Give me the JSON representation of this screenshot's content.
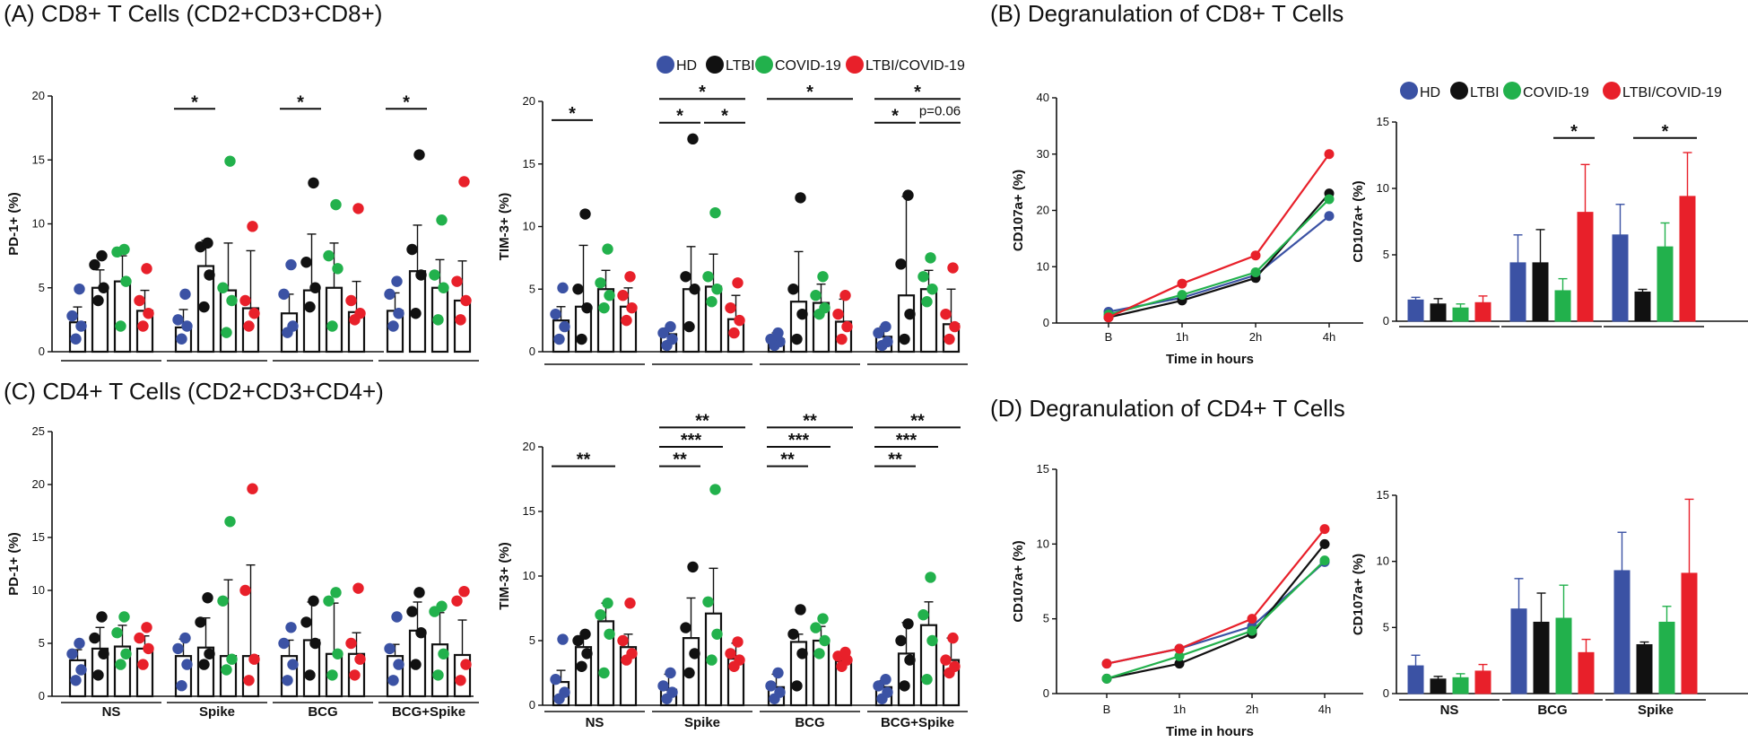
{
  "legend": {
    "labels": [
      "HD",
      "LTBI",
      "COVID-19",
      "LTBI/COVID-19"
    ],
    "colors": [
      "#3b52a4",
      "#111111",
      "#22b14c",
      "#e8202a"
    ]
  },
  "panels": {
    "A": {
      "title": "(A) CD8+ T Cells (CD2+CD3+CD8+)"
    },
    "B": {
      "title": "(B) Degranulation of CD8+ T Cells"
    },
    "C": {
      "title": "(C) CD4+ T Cells (CD2+CD3+CD4+)"
    },
    "D": {
      "title": "(D) Degranulation of CD4+ T Cells"
    }
  },
  "chart_data": [
    {
      "id": "A_pd1",
      "type": "bar",
      "panel": "A",
      "ylabel": "PD-1+ (%)",
      "ylim": [
        0,
        20
      ],
      "yticks": [
        0,
        5,
        10,
        15,
        20
      ],
      "groups": [
        "NS",
        "Spike",
        "BCG",
        "BCG+Spike"
      ],
      "show_group_labels": false,
      "series": [
        {
          "name": "HD",
          "values": [
            2.3,
            1.9,
            3.0,
            3.2
          ],
          "err": [
            1.2,
            1.4,
            1.5,
            1.4
          ]
        },
        {
          "name": "LTBI",
          "values": [
            5.0,
            6.7,
            4.8,
            6.3
          ],
          "err": [
            1.4,
            2.0,
            4.4,
            3.6
          ]
        },
        {
          "name": "COVID-19",
          "values": [
            5.5,
            4.8,
            5.0,
            5.0
          ],
          "err": [
            2.0,
            3.7,
            3.5,
            2.2
          ]
        },
        {
          "name": "LTBI/COVID-19",
          "values": [
            3.2,
            3.4,
            3.1,
            4.0
          ],
          "err": [
            1.6,
            4.5,
            2.4,
            3.1
          ]
        }
      ],
      "points": [
        [
          [
            1.0,
            2.0,
            2.8,
            4.9
          ],
          [
            4.0,
            5.0,
            6.8,
            7.5
          ],
          [
            2.0,
            5.5,
            7.8,
            8.0
          ],
          [
            2.0,
            3.0,
            4.0,
            6.5
          ]
        ],
        [
          [
            1.0,
            2.0,
            2.5,
            4.5
          ],
          [
            3.5,
            6.0,
            8.2,
            8.5
          ],
          [
            1.5,
            4.0,
            5.0,
            14.9
          ],
          [
            2.0,
            3.0,
            4.0,
            9.8
          ]
        ],
        [
          [
            1.5,
            2.0,
            4.5,
            6.8
          ],
          [
            3.5,
            5.0,
            7.0,
            13.2
          ],
          [
            2.0,
            6.5,
            7.5,
            11.5
          ],
          [
            2.5,
            3.0,
            4.0,
            11.2
          ]
        ],
        [
          [
            2.0,
            3.0,
            4.5,
            5.5
          ],
          [
            3.0,
            6.0,
            8.0,
            15.4
          ],
          [
            2.5,
            5.0,
            6.0,
            10.3
          ],
          [
            2.5,
            4.0,
            5.5,
            13.3
          ]
        ]
      ],
      "significance": [
        {
          "group": 1,
          "from": 0,
          "to": 1,
          "y": 19.0,
          "label": "*"
        },
        {
          "group": 2,
          "from": 0,
          "to": 1,
          "y": 19.0,
          "label": "*"
        },
        {
          "group": 3,
          "from": 0,
          "to": 1,
          "y": 19.0,
          "label": "*"
        }
      ]
    },
    {
      "id": "A_tim3",
      "type": "bar",
      "panel": "A",
      "ylabel": "TIM-3+ (%)",
      "ylim": [
        0,
        20
      ],
      "yticks": [
        0,
        5,
        10,
        15,
        20
      ],
      "groups": [
        "NS",
        "Spike",
        "BCG",
        "BCG+Spike"
      ],
      "show_group_labels": false,
      "series": [
        {
          "name": "HD",
          "values": [
            2.5,
            1.4,
            1.0,
            1.2
          ],
          "err": [
            1.1,
            0.5,
            0.5,
            0.8
          ]
        },
        {
          "name": "LTBI",
          "values": [
            3.6,
            5.0,
            4.0,
            4.5
          ],
          "err": [
            4.9,
            3.4,
            4.0,
            7.9
          ]
        },
        {
          "name": "COVID-19",
          "values": [
            5.0,
            5.2,
            3.9,
            5.0
          ],
          "err": [
            1.5,
            2.6,
            1.5,
            1.5
          ]
        },
        {
          "name": "LTBI/COVID-19",
          "values": [
            3.6,
            2.6,
            2.4,
            2.2
          ],
          "err": [
            1.5,
            1.9,
            1.8,
            2.8
          ]
        }
      ],
      "points": [
        [
          [
            1.0,
            2.0,
            3.0,
            5.1
          ],
          [
            1.0,
            3.5,
            5.0,
            11.0
          ],
          [
            3.5,
            4.5,
            5.5,
            8.2
          ],
          [
            2.5,
            3.5,
            4.5,
            6.0
          ]
        ],
        [
          [
            0.5,
            1.0,
            1.5,
            2.0
          ],
          [
            2.0,
            5.0,
            6.0,
            17.0
          ],
          [
            4.0,
            5.0,
            6.0,
            11.1
          ],
          [
            1.5,
            2.5,
            3.5,
            5.5
          ]
        ],
        [
          [
            0.5,
            0.8,
            1.0,
            1.5
          ],
          [
            1.0,
            3.0,
            5.0,
            12.3
          ],
          [
            3.0,
            3.5,
            4.5,
            6.0
          ],
          [
            1.0,
            2.0,
            3.0,
            4.5
          ]
        ],
        [
          [
            0.5,
            0.8,
            1.5,
            2.0
          ],
          [
            1.0,
            3.0,
            7.0,
            12.5
          ],
          [
            4.0,
            5.0,
            6.0,
            7.5
          ],
          [
            1.0,
            2.0,
            3.0,
            6.7
          ]
        ]
      ],
      "significance": [
        {
          "group": 0,
          "from": 0,
          "to": 1,
          "y": 18.5,
          "label": "*"
        },
        {
          "group": 1,
          "from": 0,
          "to": 3,
          "y": 20.2,
          "label": "*"
        },
        {
          "group": 1,
          "from": 0,
          "to": 1,
          "y": 18.3,
          "label": "*"
        },
        {
          "group": 1,
          "from": 2,
          "to": 3,
          "y": 18.3,
          "label": "*"
        },
        {
          "group": 2,
          "from": 0,
          "to": 3,
          "y": 20.2,
          "label": "*"
        },
        {
          "group": 3,
          "from": 0,
          "to": 3,
          "y": 20.2,
          "label": "*"
        },
        {
          "group": 3,
          "from": 0,
          "to": 1,
          "y": 18.3,
          "label": "*"
        },
        {
          "group": 3,
          "from": 2,
          "to": 3,
          "y": 18.3,
          "label": "p=0.06"
        }
      ]
    },
    {
      "id": "C_pd1",
      "type": "bar",
      "panel": "C",
      "ylabel": "PD-1+ (%)",
      "ylim": [
        0,
        25
      ],
      "yticks": [
        0,
        5,
        10,
        15,
        20,
        25
      ],
      "groups": [
        "NS",
        "Spike",
        "BCG",
        "BCG+Spike"
      ],
      "show_group_labels": true,
      "series": [
        {
          "name": "HD",
          "values": [
            3.4,
            3.8,
            3.8,
            3.8
          ],
          "err": [
            1.0,
            1.6,
            1.5,
            1.1
          ]
        },
        {
          "name": "LTBI",
          "values": [
            4.5,
            4.6,
            5.3,
            6.2
          ],
          "err": [
            2.0,
            2.8,
            3.6,
            2.7
          ]
        },
        {
          "name": "COVID-19",
          "values": [
            4.7,
            3.8,
            4.0,
            4.9
          ],
          "err": [
            2.0,
            7.2,
            4.8,
            3.0
          ]
        },
        {
          "name": "LTBI/COVID-19",
          "values": [
            4.5,
            3.8,
            4.0,
            3.9
          ],
          "err": [
            1.2,
            8.6,
            2.0,
            3.3
          ]
        }
      ],
      "points": [
        [
          [
            1.5,
            2.5,
            4.0,
            5.0
          ],
          [
            2.0,
            4.0,
            5.5,
            7.5
          ],
          [
            3.0,
            4.0,
            6.0,
            7.5
          ],
          [
            3.0,
            4.5,
            5.5,
            6.5
          ]
        ],
        [
          [
            1.0,
            3.0,
            4.5,
            5.5
          ],
          [
            3.0,
            4.0,
            7.0,
            9.3
          ],
          [
            2.5,
            3.5,
            9.0,
            16.5
          ],
          [
            1.5,
            3.5,
            10.0,
            19.6
          ]
        ],
        [
          [
            1.5,
            3.0,
            5.0,
            6.5
          ],
          [
            2.0,
            5.0,
            7.0,
            9.0
          ],
          [
            2.0,
            4.0,
            9.0,
            9.8
          ],
          [
            2.0,
            3.5,
            5.0,
            10.2
          ]
        ],
        [
          [
            1.5,
            3.0,
            4.5,
            7.5
          ],
          [
            3.0,
            6.0,
            8.0,
            9.8
          ],
          [
            2.0,
            4.0,
            8.0,
            8.5
          ],
          [
            1.5,
            3.0,
            9.0,
            9.9
          ]
        ]
      ],
      "significance": []
    },
    {
      "id": "C_tim3",
      "type": "bar",
      "panel": "C",
      "ylabel": "TIM-3+ (%)",
      "ylim": [
        0,
        20
      ],
      "yticks": [
        0,
        5,
        10,
        15,
        20
      ],
      "groups": [
        "NS",
        "Spike",
        "BCG",
        "BCG+Spike"
      ],
      "show_group_labels": true,
      "series": [
        {
          "name": "HD",
          "values": [
            1.8,
            1.2,
            1.4,
            1.4
          ],
          "err": [
            0.9,
            1.2,
            1.0,
            0.5
          ]
        },
        {
          "name": "LTBI",
          "values": [
            4.5,
            5.2,
            4.9,
            4.0
          ],
          "err": [
            0.8,
            3.1,
            0.6,
            2.4
          ]
        },
        {
          "name": "COVID-19",
          "values": [
            6.5,
            7.1,
            5.0,
            6.2
          ],
          "err": [
            1.4,
            3.5,
            1.1,
            1.8
          ]
        },
        {
          "name": "LTBI/COVID-19",
          "values": [
            4.5,
            3.6,
            3.4,
            3.5
          ],
          "err": [
            1.0,
            1.2,
            0.5,
            1.7
          ]
        }
      ],
      "points": [
        [
          [
            0.5,
            1.0,
            2.0,
            5.1
          ],
          [
            3.0,
            4.0,
            5.0,
            5.5
          ],
          [
            2.5,
            5.5,
            7.0,
            7.9
          ],
          [
            3.5,
            4.0,
            5.0,
            7.9
          ]
        ],
        [
          [
            0.5,
            1.0,
            1.5,
            2.5
          ],
          [
            2.5,
            4.0,
            6.0,
            10.7
          ],
          [
            3.5,
            5.5,
            8.0,
            16.7
          ],
          [
            3.0,
            3.5,
            4.0,
            4.9
          ]
        ],
        [
          [
            0.5,
            1.0,
            1.5,
            2.5
          ],
          [
            1.5,
            4.0,
            5.5,
            7.4
          ],
          [
            4.0,
            5.0,
            6.0,
            6.7
          ],
          [
            3.0,
            3.5,
            3.8,
            4.1
          ]
        ],
        [
          [
            0.5,
            1.0,
            1.5,
            2.0
          ],
          [
            1.5,
            3.5,
            5.0,
            6.3
          ],
          [
            2.0,
            5.0,
            7.0,
            9.9
          ],
          [
            2.5,
            3.0,
            3.5,
            5.2
          ]
        ]
      ],
      "significance": [
        {
          "group": 0,
          "from": 0,
          "to": 2,
          "y": 18.5,
          "label": "**"
        },
        {
          "group": 1,
          "from": 0,
          "to": 1,
          "y": 18.5,
          "label": "**"
        },
        {
          "group": 1,
          "from": 0,
          "to": 2,
          "y": 20.0,
          "label": "***"
        },
        {
          "group": 1,
          "from": 0,
          "to": 3,
          "y": 21.5,
          "label": "**"
        },
        {
          "group": 2,
          "from": 0,
          "to": 1,
          "y": 18.5,
          "label": "**"
        },
        {
          "group": 2,
          "from": 0,
          "to": 2,
          "y": 20.0,
          "label": "***"
        },
        {
          "group": 2,
          "from": 0,
          "to": 3,
          "y": 21.5,
          "label": "**"
        },
        {
          "group": 3,
          "from": 0,
          "to": 1,
          "y": 18.5,
          "label": "**"
        },
        {
          "group": 3,
          "from": 0,
          "to": 2,
          "y": 20.0,
          "label": "***"
        },
        {
          "group": 3,
          "from": 0,
          "to": 3,
          "y": 21.5,
          "label": "**"
        }
      ]
    },
    {
      "id": "B_line",
      "type": "line",
      "panel": "B",
      "xlabel": "Time in hours",
      "ylabel": "CD107a+ (%)",
      "x": [
        "B",
        "1h",
        "2h",
        "4h"
      ],
      "ylim": [
        0,
        40
      ],
      "yticks": [
        0,
        10,
        20,
        30,
        40
      ],
      "series": [
        {
          "name": "HD",
          "values": [
            2.0,
            4.5,
            8.5,
            19.0
          ]
        },
        {
          "name": "LTBI",
          "values": [
            1.0,
            4.0,
            8.0,
            23.0
          ]
        },
        {
          "name": "COVID-19",
          "values": [
            1.5,
            5.0,
            9.0,
            22.0
          ]
        },
        {
          "name": "LTBI/COVID-19",
          "values": [
            1.0,
            7.0,
            12.0,
            30.0
          ]
        }
      ]
    },
    {
      "id": "B_bar",
      "type": "bar",
      "panel": "B",
      "ylabel": "CD107a+ (%)",
      "ylim": [
        0,
        15
      ],
      "yticks": [
        0,
        5,
        10,
        15
      ],
      "groups": [
        "NS",
        "BCG",
        "Spike"
      ],
      "show_group_labels": false,
      "series": [
        {
          "name": "HD",
          "values": [
            1.6,
            4.4,
            6.5
          ],
          "err": [
            0.2,
            2.1,
            2.3
          ]
        },
        {
          "name": "LTBI",
          "values": [
            1.3,
            4.4,
            2.2
          ],
          "err": [
            0.4,
            2.5,
            0.2
          ]
        },
        {
          "name": "COVID-19",
          "values": [
            1.0,
            2.3,
            5.6
          ],
          "err": [
            0.3,
            0.9,
            1.8
          ]
        },
        {
          "name": "LTBI/COVID-19",
          "values": [
            1.4,
            8.2,
            9.4
          ],
          "err": [
            0.5,
            3.6,
            3.3
          ]
        }
      ],
      "significance": [
        {
          "group": 1,
          "from": 2,
          "to": 3,
          "y": 13.8,
          "label": "*"
        },
        {
          "group": 2,
          "from": 1,
          "to": 3,
          "y": 13.8,
          "label": "*"
        }
      ]
    },
    {
      "id": "D_line",
      "type": "line",
      "panel": "D",
      "xlabel": "Time in hours",
      "ylabel": "CD107a+ (%)",
      "x": [
        "B",
        "1h",
        "2h",
        "4h"
      ],
      "ylim": [
        0,
        15
      ],
      "yticks": [
        0,
        5,
        10,
        15
      ],
      "series": [
        {
          "name": "HD",
          "values": [
            2.0,
            3.0,
            4.5,
            8.8
          ]
        },
        {
          "name": "LTBI",
          "values": [
            1.0,
            2.0,
            4.0,
            10.0
          ]
        },
        {
          "name": "COVID-19",
          "values": [
            1.0,
            2.5,
            4.2,
            8.9
          ]
        },
        {
          "name": "LTBI/COVID-19",
          "values": [
            2.0,
            3.0,
            5.0,
            11.0
          ]
        }
      ]
    },
    {
      "id": "D_bar",
      "type": "bar",
      "panel": "D",
      "ylabel": "CD107a+ (%)",
      "ylim": [
        0,
        15
      ],
      "yticks": [
        0,
        5,
        10,
        15
      ],
      "groups": [
        "NS",
        "BCG",
        "Spike"
      ],
      "show_group_labels": true,
      "series": [
        {
          "name": "HD",
          "values": [
            2.1,
            6.4,
            9.3
          ],
          "err": [
            0.8,
            2.3,
            2.9
          ]
        },
        {
          "name": "LTBI",
          "values": [
            1.1,
            5.4,
            3.7
          ],
          "err": [
            0.2,
            2.2,
            0.2
          ]
        },
        {
          "name": "COVID-19",
          "values": [
            1.2,
            5.7,
            5.4
          ],
          "err": [
            0.3,
            2.5,
            1.2
          ]
        },
        {
          "name": "LTBI/COVID-19",
          "values": [
            1.7,
            3.1,
            9.1
          ],
          "err": [
            0.5,
            1.0,
            5.6
          ]
        }
      ],
      "significance": []
    }
  ]
}
